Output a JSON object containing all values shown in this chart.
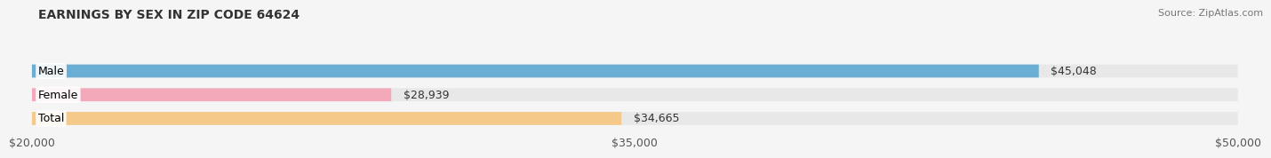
{
  "title": "EARNINGS BY SEX IN ZIP CODE 64624",
  "source": "Source: ZipAtlas.com",
  "categories": [
    "Male",
    "Female",
    "Total"
  ],
  "values": [
    45048,
    28939,
    34665
  ],
  "bar_colors": [
    "#6aaed6",
    "#f4a9bb",
    "#f5c98a"
  ],
  "value_labels": [
    "$45,048",
    "$28,939",
    "$34,665"
  ],
  "xmin": 20000,
  "xmax": 50000,
  "xticks": [
    20000,
    35000,
    50000
  ],
  "xtick_labels": [
    "$20,000",
    "$35,000",
    "$50,000"
  ],
  "bar_height": 0.55,
  "background_color": "#f5f5f5",
  "bar_bg_color": "#e8e8e8",
  "label_fontsize": 9,
  "title_fontsize": 10,
  "source_fontsize": 8
}
